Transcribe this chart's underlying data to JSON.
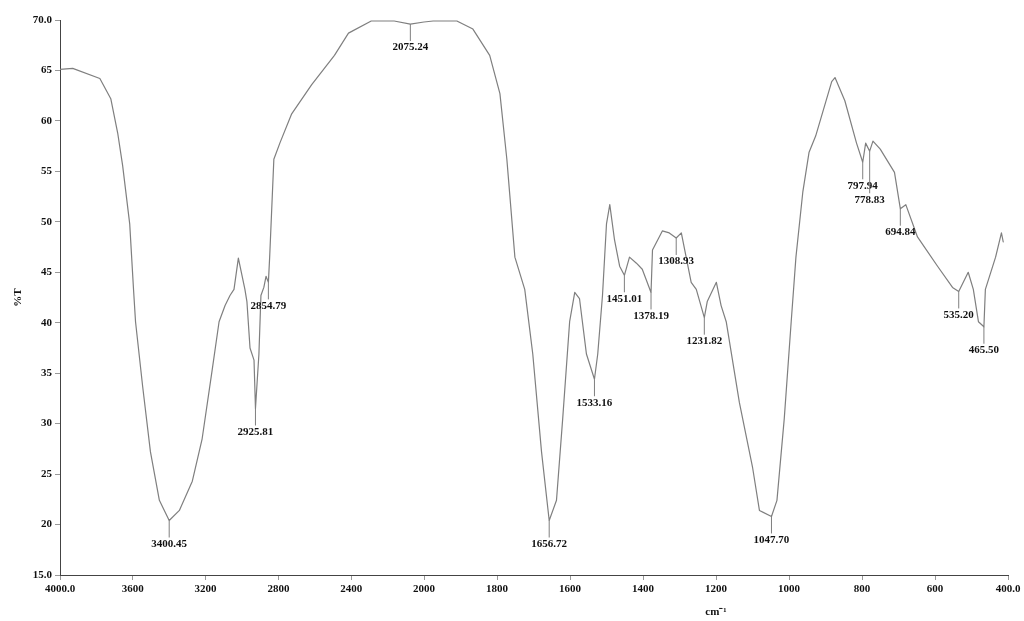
{
  "chart_data": [
    {
      "type": "line",
      "ylabel": "%T",
      "x": [
        4000,
        3930,
        3781,
        3721,
        3683,
        3656,
        3617,
        3596,
        3585,
        3546,
        3503,
        3454,
        3400,
        3344,
        3273,
        3219,
        3164,
        3126,
        3093,
        3066,
        3044,
        3020,
        2984,
        2973,
        2956,
        2934,
        2926,
        2907,
        2896,
        2880,
        2868,
        2855,
        2848,
        2825,
        2792,
        2727,
        2617,
        2492,
        2415,
        2290,
        2164,
        2075,
        2000
      ],
      "series": [
        {
          "color": "#7f7f7f",
          "values": [
            65.1,
            65.2,
            64.2,
            62.2,
            58.8,
            55.6,
            49.8,
            43.3,
            40.1,
            33.7,
            27.2,
            22.4,
            20.4,
            21.4,
            24.3,
            28.5,
            35.3,
            40.1,
            41.7,
            42.7,
            43.3,
            46.4,
            43.3,
            42.1,
            37.5,
            36.3,
            31.5,
            36.9,
            42.7,
            43.5,
            44.6,
            44.0,
            46.5,
            56.2,
            57.8,
            60.7,
            63.6,
            66.5,
            68.7,
            69.9,
            69.9,
            69.6,
            69.8
          ]
        }
      ],
      "xlim": [
        4000,
        2000
      ],
      "xticks": [
        {
          "value": 4000,
          "label": "4000.0"
        },
        3600,
        3200,
        2800,
        2400,
        2000
      ],
      "ylim": [
        15,
        70
      ],
      "yticks": [
        {
          "value": 15,
          "label": "15.0"
        },
        20,
        25,
        30,
        35,
        40,
        45,
        50,
        55,
        60,
        65,
        {
          "value": 70,
          "label": "70.0"
        }
      ],
      "grid": false,
      "legend": false,
      "marker": "none",
      "line_style": "solid",
      "annotations": [
        {
          "text": "3400.45",
          "x": 3400,
          "y": 20.4
        },
        {
          "text": "2925.81",
          "x": 2926,
          "y": 31.5
        },
        {
          "text": "2854.79",
          "x": 2855,
          "y": 44.0
        },
        {
          "text": "2075.24",
          "x": 2075,
          "y": 69.6
        }
      ]
    },
    {
      "type": "line",
      "xlabel": "cm⁻¹",
      "x": [
        2000,
        1975,
        1910,
        1866,
        1820,
        1792,
        1773,
        1751,
        1724,
        1702,
        1678,
        1657,
        1637,
        1620,
        1601,
        1587,
        1574,
        1555,
        1533,
        1524,
        1511,
        1500,
        1491,
        1478,
        1464,
        1451,
        1437,
        1418,
        1402,
        1378,
        1374,
        1347,
        1328,
        1309,
        1295,
        1268,
        1254,
        1232,
        1224,
        1199,
        1186,
        1172,
        1136,
        1100,
        1081,
        1048,
        1033,
        1013,
        994,
        981,
        962,
        945,
        927,
        883,
        874,
        847,
        815,
        798,
        790,
        779,
        770,
        750,
        711,
        695,
        680,
        648,
        593,
        552,
        535,
        509,
        495,
        481,
        466,
        462,
        434,
        418,
        413
      ],
      "series": [
        {
          "color": "#7f7f7f",
          "values": [
            69.8,
            69.9,
            69.9,
            69.1,
            66.5,
            62.7,
            56.2,
            46.5,
            43.3,
            36.9,
            27.2,
            20.4,
            22.4,
            30.5,
            40.1,
            43.0,
            42.4,
            36.9,
            34.4,
            36.9,
            42.7,
            49.8,
            51.7,
            48.2,
            45.6,
            44.7,
            46.5,
            45.9,
            45.3,
            43.0,
            47.2,
            49.1,
            48.9,
            48.4,
            48.9,
            44.0,
            43.3,
            40.5,
            42.1,
            44.0,
            41.7,
            40.1,
            32.1,
            25.7,
            21.4,
            20.8,
            22.4,
            30.5,
            40.1,
            46.5,
            53.0,
            56.9,
            58.5,
            63.9,
            64.3,
            62.0,
            57.8,
            55.9,
            57.8,
            57.0,
            58.0,
            57.2,
            54.9,
            51.3,
            51.7,
            48.5,
            45.6,
            43.5,
            43.1,
            45.0,
            43.3,
            40.1,
            39.6,
            43.3,
            46.5,
            48.9,
            48.0
          ]
        }
      ],
      "xlim": [
        2000,
        400
      ],
      "xticks": [
        {
          "value": 2000,
          "label": null
        },
        1800,
        1600,
        1400,
        1200,
        1000,
        800,
        600,
        {
          "value": 400,
          "label": "400.0"
        }
      ],
      "ylim": [
        15,
        70
      ],
      "tick_labels": "x",
      "grid": false,
      "legend": false,
      "marker": "none",
      "line_style": "solid",
      "annotations": [
        {
          "text": "1656.72",
          "x": 1657,
          "y": 20.4
        },
        {
          "text": "1533.16",
          "x": 1533,
          "y": 34.4
        },
        {
          "text": "1451.01",
          "x": 1451,
          "y": 44.7
        },
        {
          "text": "1378.19",
          "x": 1378,
          "y": 43.0
        },
        {
          "text": "1308.93",
          "x": 1309,
          "y": 48.4
        },
        {
          "text": "1231.82",
          "x": 1232,
          "y": 40.5
        },
        {
          "text": "1047.70",
          "x": 1048,
          "y": 20.8
        },
        {
          "text": "797.94",
          "x": 798,
          "y": 55.9
        },
        {
          "text": "778.83",
          "x": 779,
          "y": 57.0
        },
        {
          "text": "694.84",
          "x": 695,
          "y": 51.3
        },
        {
          "text": "535.20",
          "x": 535,
          "y": 43.1
        },
        {
          "text": "465.50",
          "x": 466,
          "y": 39.6
        }
      ]
    }
  ]
}
